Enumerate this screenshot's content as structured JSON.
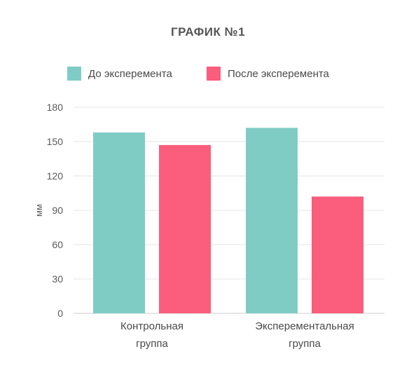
{
  "chart_data": {
    "type": "bar",
    "title": "ГРАФИК №1",
    "ylabel": "мм",
    "xlabel": "",
    "ylim": [
      0,
      180
    ],
    "yticks": [
      0,
      30,
      60,
      90,
      120,
      150,
      180
    ],
    "categories": [
      [
        "Контрольная",
        "группа"
      ],
      [
        "Эксперементальная",
        "группа"
      ]
    ],
    "series": [
      {
        "name": "До эксперемента",
        "color": "#7fccc5",
        "values": [
          158,
          162
        ]
      },
      {
        "name": "После эксперемента",
        "color": "#fb5d7c",
        "values": [
          147,
          102
        ]
      }
    ],
    "grid": true,
    "legend_position": "top"
  }
}
